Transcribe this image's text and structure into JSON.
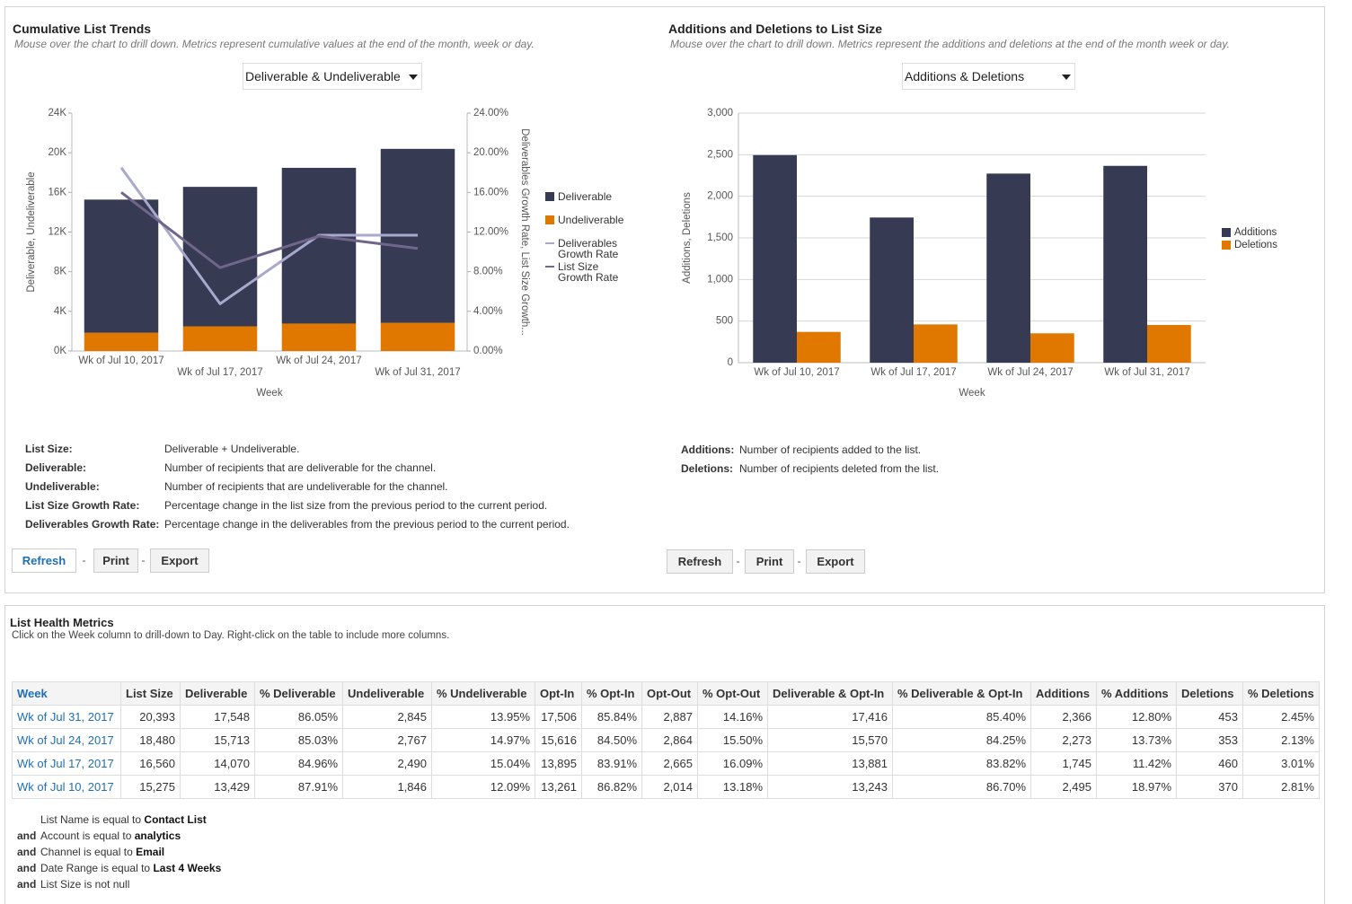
{
  "chart_data": [
    {
      "type": "bar",
      "stacked": true,
      "title": "Cumulative List Trends",
      "subtitle": "Mouse over the chart to drill down. Metrics represent cumulative values at the end of the month, week or day.",
      "categories": [
        "Wk of Jul 10, 2017",
        "Wk of Jul 17, 2017",
        "Wk of Jul 24, 2017",
        "Wk of Jul 31, 2017"
      ],
      "series": [
        {
          "name": "Deliverable",
          "color": "#363a52",
          "values": [
            13429,
            14070,
            15713,
            17548
          ]
        },
        {
          "name": "Undeliverable",
          "color": "#e07800",
          "values": [
            1846,
            2490,
            2767,
            2845
          ]
        },
        {
          "name": "Deliverables Growth Rate",
          "color": "#a8a9cc",
          "type": "line",
          "axis": "y2",
          "values": [
            18.5,
            4.77,
            11.68,
            11.68
          ]
        },
        {
          "name": "List Size Growth Rate",
          "color": "#70668a",
          "type": "line",
          "axis": "y2",
          "values": [
            16.0,
            8.41,
            11.59,
            10.35
          ]
        }
      ],
      "ylim": [
        0,
        24000
      ],
      "yticks": [
        {
          "value": 0,
          "label": "0K"
        },
        {
          "value": 4000,
          "label": "4K"
        },
        {
          "value": 8000,
          "label": "8K"
        },
        {
          "value": 12000,
          "label": "12K"
        },
        {
          "value": 16000,
          "label": "16K"
        },
        {
          "value": 20000,
          "label": "20K"
        },
        {
          "value": 24000,
          "label": "24K"
        }
      ],
      "y2lim": [
        0,
        24
      ],
      "y2ticks": [
        {
          "value": 0,
          "label": "0.00%"
        },
        {
          "value": 4,
          "label": "4.00%"
        },
        {
          "value": 8,
          "label": "8.00%"
        },
        {
          "value": 12,
          "label": "12.00%"
        },
        {
          "value": 16,
          "label": "16.00%"
        },
        {
          "value": 20,
          "label": "20.00%"
        },
        {
          "value": 24,
          "label": "24.00%"
        }
      ],
      "xlabel": "Week",
      "ylabel": "Deliverable, Undeliverable",
      "y2label": "Deliverables Growth Rate, List Size Growth...",
      "grid": false,
      "legend": "right"
    },
    {
      "type": "bar",
      "stacked": false,
      "title": "Additions and Deletions to List Size",
      "subtitle": "Mouse over the chart to drill down. Metrics represent the additions and deletions at the end of the month week or day.",
      "categories": [
        "Wk of Jul 10, 2017",
        "Wk of Jul 17, 2017",
        "Wk of Jul 24, 2017",
        "Wk of Jul 31, 2017"
      ],
      "series": [
        {
          "name": "Additions",
          "color": "#363a52",
          "values": [
            2495,
            1745,
            2273,
            2366
          ]
        },
        {
          "name": "Deletions",
          "color": "#e07800",
          "values": [
            370,
            460,
            353,
            453
          ]
        }
      ],
      "ylim": [
        0,
        3000
      ],
      "yticks": [
        0,
        500,
        {
          "value": 1000,
          "label": "1,000"
        },
        {
          "value": 1500,
          "label": "1,500"
        },
        {
          "value": 2000,
          "label": "2,000"
        },
        {
          "value": 2500,
          "label": "2,500"
        },
        {
          "value": 3000,
          "label": "3,000"
        }
      ],
      "xlabel": "Week",
      "ylabel": "Additions, Deletions",
      "grid": true,
      "legend": "right"
    }
  ],
  "panels": [
    {
      "dropdown": "Deliverable & Undeliverable",
      "definitions": [
        {
          "term": "List Size:",
          "text": "Deliverable + Undeliverable."
        },
        {
          "term": "Deliverable:",
          "text": "Number of recipients that are deliverable for the channel."
        },
        {
          "term": "Undeliverable:",
          "text": "Number of recipients that are undeliverable for the channel."
        },
        {
          "term": "List Size Growth Rate:",
          "text": "Percentage change in the list size from the previous period to the current period."
        },
        {
          "term": "Deliverables Growth Rate:",
          "text": "Percentage change in the deliverables from the previous period to the current period."
        }
      ],
      "buttons": [
        "Refresh",
        "Print",
        "Export"
      ],
      "separator": "-"
    },
    {
      "dropdown": "Additions & Deletions",
      "definitions": [
        {
          "term": "Additions:",
          "text": "Number of recipients added to the list."
        },
        {
          "term": "Deletions:",
          "text": "Number of recipients deleted from the list."
        }
      ],
      "buttons": [
        "Refresh",
        "Print",
        "Export"
      ],
      "separator": "-"
    }
  ],
  "metrics": {
    "title": "List Health Metrics",
    "subtitle": "Click on the Week column to drill-down to Day. Right-click on the table to include more columns.",
    "columns": [
      "Week",
      "List Size",
      "Deliverable",
      "% Deliverable",
      "Undeliverable",
      "% Undeliverable",
      "Opt-In",
      "% Opt-In",
      "Opt-Out",
      "% Opt-Out",
      "Deliverable & Opt-In",
      "% Deliverable & Opt-In",
      "Additions",
      "% Additions",
      "Deletions",
      "% Deletions"
    ],
    "rows": [
      [
        "Wk of Jul 31, 2017",
        "20,393",
        "17,548",
        "86.05%",
        "2,845",
        "13.95%",
        "17,506",
        "85.84%",
        "2,887",
        "14.16%",
        "17,416",
        "85.40%",
        "2,366",
        "12.80%",
        "453",
        "2.45%"
      ],
      [
        "Wk of Jul 24, 2017",
        "18,480",
        "15,713",
        "85.03%",
        "2,767",
        "14.97%",
        "15,616",
        "84.50%",
        "2,864",
        "15.50%",
        "15,570",
        "84.25%",
        "2,273",
        "13.73%",
        "353",
        "2.13%"
      ],
      [
        "Wk of Jul 17, 2017",
        "16,560",
        "14,070",
        "84.96%",
        "2,490",
        "15.04%",
        "13,895",
        "83.91%",
        "2,665",
        "16.09%",
        "13,881",
        "83.82%",
        "1,745",
        "11.42%",
        "460",
        "3.01%"
      ],
      [
        "Wk of Jul 10, 2017",
        "15,275",
        "13,429",
        "87.91%",
        "1,846",
        "12.09%",
        "13,261",
        "86.82%",
        "2,014",
        "13.18%",
        "13,243",
        "86.70%",
        "2,495",
        "18.97%",
        "370",
        "2.81%"
      ]
    ],
    "filters": [
      {
        "condition": "List Name is equal to",
        "value": "Contact List"
      },
      {
        "conjunction": "and",
        "condition": "Account is equal to",
        "value": "analytics"
      },
      {
        "conjunction": "and",
        "condition": "Channel is equal to",
        "value": "Email"
      },
      {
        "conjunction": "and",
        "condition": "Date Range is equal to",
        "value": "Last 4 Weeks"
      },
      {
        "conjunction": "and",
        "condition": "List Size is not null"
      }
    ]
  }
}
